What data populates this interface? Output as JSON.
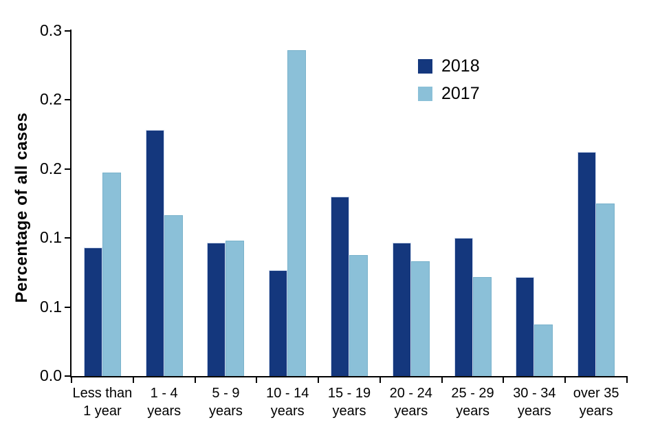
{
  "chart_data": {
    "type": "bar",
    "title": "",
    "ylabel": "Percentage of all cases",
    "xlabel": "",
    "ylim": [
      0,
      0.3
    ],
    "grid": false,
    "background": "#ffffff",
    "axis_color": "#000000",
    "legend_position": "upper-right-inside",
    "y_ticks": [
      {
        "label": "0.3",
        "value": 0.3
      },
      {
        "label": "0.2",
        "value": 0.24
      },
      {
        "label": "0.2",
        "value": 0.18
      },
      {
        "label": "0.1",
        "value": 0.12
      },
      {
        "label": "0.1",
        "value": 0.06
      },
      {
        "label": "0.0",
        "value": 0.0
      }
    ],
    "categories": [
      "Less than 1 year",
      "1 - 4 years",
      "5 - 9 years",
      "10 - 14 years",
      "15 - 19 years",
      "20 - 24 years",
      "25 - 29 years",
      "30 - 34 years",
      "over 35 years"
    ],
    "category_labels": [
      [
        "Less than",
        "1 year"
      ],
      [
        "1 - 4",
        "years"
      ],
      [
        "5 - 9",
        "years"
      ],
      [
        "10 - 14",
        "years"
      ],
      [
        "15 - 19",
        "years"
      ],
      [
        "20 - 24",
        "years"
      ],
      [
        "25 - 29",
        "years"
      ],
      [
        "30 - 34",
        "years"
      ],
      [
        "over 35",
        "years"
      ]
    ],
    "series": [
      {
        "name": "2018",
        "color": "#14377D",
        "edge_color": "#ccd8ec",
        "values": [
          0.112,
          0.214,
          0.116,
          0.092,
          0.156,
          0.116,
          0.12,
          0.086,
          0.195
        ]
      },
      {
        "name": "2017",
        "color": "#8BC0D8",
        "edge_color": "#79b2cb",
        "values": [
          0.177,
          0.14,
          0.118,
          0.283,
          0.105,
          0.1,
          0.086,
          0.045,
          0.15
        ]
      }
    ]
  }
}
